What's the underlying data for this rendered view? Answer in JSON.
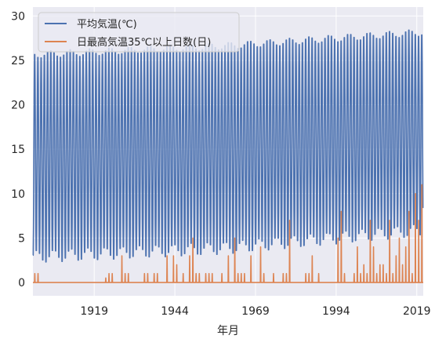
{
  "colors": {
    "plot_bg": "#EAEAF2",
    "grid": "#ffffff",
    "series_avg": "#4C72B0",
    "series_35": "#DD8452"
  },
  "chart_data": {
    "type": "line",
    "xlabel": "年月",
    "ylabel": "",
    "x_ticks": [
      "1919",
      "1944",
      "1969",
      "1994",
      "2019"
    ],
    "x_range": [
      1900,
      2021
    ],
    "ylim": [
      -1.5,
      31
    ],
    "y_ticks": [
      0,
      5,
      10,
      15,
      20,
      25,
      30
    ],
    "grid": true,
    "legend_position": "top-left",
    "series": [
      {
        "name": "平均気温(℃)",
        "type": "seasonal_monthly",
        "summer_peak_trend": [
          [
            1900,
            26.0
          ],
          [
            1960,
            27.0
          ],
          [
            2020,
            28.5
          ]
        ],
        "winter_min_trend": [
          [
            1900,
            2.5
          ],
          [
            1960,
            3.5
          ],
          [
            2020,
            5.5
          ]
        ]
      },
      {
        "name": "日最高気温35℃以上日数(日)",
        "type": "monthly_counts",
        "peaks": [
          [
            1900,
            1
          ],
          [
            1901,
            1
          ],
          [
            1922,
            0.5
          ],
          [
            1923,
            1
          ],
          [
            1924,
            1
          ],
          [
            1927,
            3
          ],
          [
            1928,
            1
          ],
          [
            1929,
            1
          ],
          [
            1934,
            1
          ],
          [
            1935,
            1
          ],
          [
            1937,
            1
          ],
          [
            1938,
            1
          ],
          [
            1941,
            3
          ],
          [
            1943,
            3
          ],
          [
            1944,
            2
          ],
          [
            1946,
            1
          ],
          [
            1948,
            3
          ],
          [
            1949,
            5
          ],
          [
            1950,
            1
          ],
          [
            1951,
            1
          ],
          [
            1953,
            1
          ],
          [
            1954,
            1
          ],
          [
            1955,
            1
          ],
          [
            1958,
            1
          ],
          [
            1960,
            3
          ],
          [
            1962,
            5
          ],
          [
            1963,
            1
          ],
          [
            1964,
            1
          ],
          [
            1965,
            1
          ],
          [
            1967,
            3
          ],
          [
            1970,
            4
          ],
          [
            1971,
            1
          ],
          [
            1974,
            1
          ],
          [
            1977,
            1
          ],
          [
            1978,
            1
          ],
          [
            1979,
            7
          ],
          [
            1984,
            1
          ],
          [
            1985,
            1
          ],
          [
            1986,
            3
          ],
          [
            1988,
            1
          ],
          [
            1994,
            5
          ],
          [
            1995,
            8
          ],
          [
            1996,
            1
          ],
          [
            1999,
            1
          ],
          [
            2000,
            4
          ],
          [
            2001,
            1
          ],
          [
            2002,
            2
          ],
          [
            2003,
            1
          ],
          [
            2004,
            7
          ],
          [
            2005,
            4
          ],
          [
            2006,
            1
          ],
          [
            2007,
            2
          ],
          [
            2008,
            2
          ],
          [
            2009,
            1
          ],
          [
            2010,
            7
          ],
          [
            2011,
            1
          ],
          [
            2012,
            3
          ],
          [
            2013,
            5
          ],
          [
            2014,
            2
          ],
          [
            2015,
            4
          ],
          [
            2016,
            8
          ],
          [
            2017,
            1
          ],
          [
            2018,
            10
          ],
          [
            2019,
            7
          ],
          [
            2020,
            11
          ]
        ]
      }
    ]
  }
}
